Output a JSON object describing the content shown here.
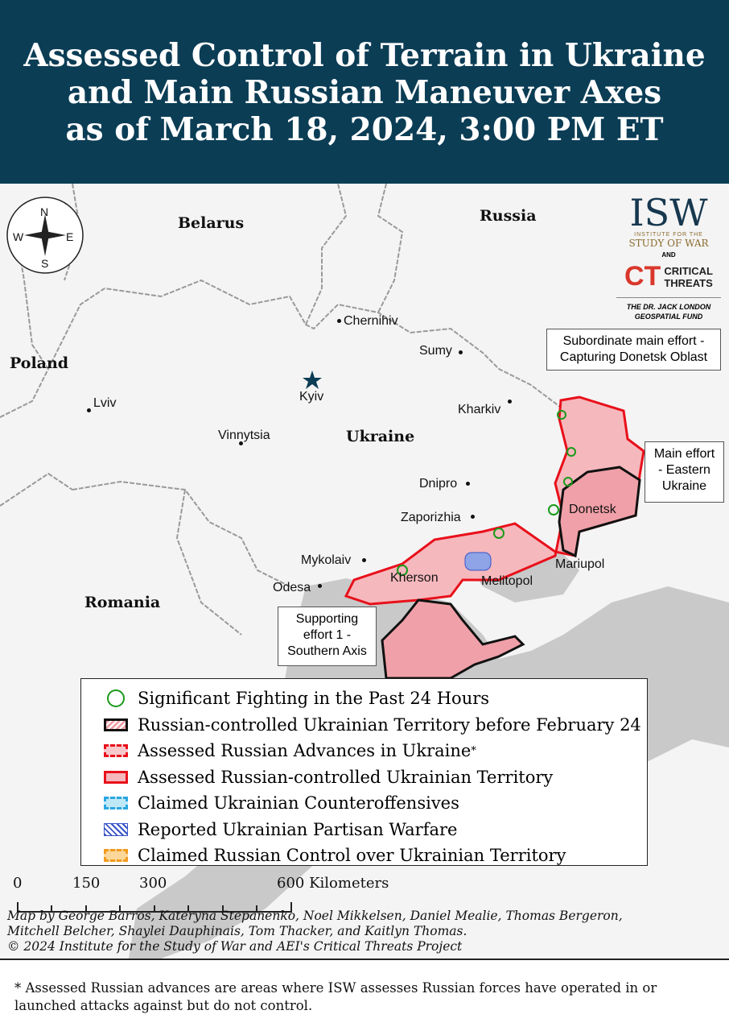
{
  "header": {
    "title_lines": [
      "Assessed Control of Terrain in Ukraine",
      "and Main Russian Maneuver Axes",
      "as of March 18, 2024, 3:00 PM ET"
    ]
  },
  "compass": {
    "n": "N",
    "s": "S",
    "e": "E",
    "w": "W"
  },
  "logo": {
    "isw": "ISW",
    "isw_sub1": "INSTITUTE FOR THE",
    "isw_sub2": "STUDY OF WAR",
    "and": "AND",
    "ct": "CT",
    "ct_line1": "CRITICAL",
    "ct_line2": "THREATS",
    "fund_line1": "THE DR. JACK LONDON",
    "fund_line2": "GEOSPATIAL FUND"
  },
  "countries": {
    "belarus": "Belarus",
    "russia": "Russia",
    "poland": "Poland",
    "ukraine": "Ukraine",
    "romania": "Romania"
  },
  "cities": {
    "chernihiv": "Chernihiv",
    "sumy": "Sumy",
    "kyiv": "Kyiv",
    "kharkiv": "Kharkiv",
    "lviv": "Lviv",
    "vinnytsia": "Vinnytsia",
    "dnipro": "Dnipro",
    "zaporizhia": "Zaporizhia",
    "donetsk": "Donetsk",
    "mykolaiv": "Mykolaiv",
    "mariupol": "Mariupol",
    "odesa": "Odesa",
    "kherson": "Kherson",
    "melitopol": "Melitopol"
  },
  "callouts": {
    "subordinate": "Subordinate main effort - Capturing Donetsk Oblast",
    "main": "Main effort - Eastern Ukraine",
    "supporting": "Supporting effort 1 - Southern Axis"
  },
  "legend": {
    "items": [
      {
        "label": "Significant Fighting in the Past 24 Hours"
      },
      {
        "label": "Russian-controlled Ukrainian Territory before February 24"
      },
      {
        "label": "Assessed Russian Advances in Ukraine",
        "sup": "*"
      },
      {
        "label": "Assessed Russian-controlled Ukrainian Territory"
      },
      {
        "label": "Claimed Ukrainian Counteroffensives"
      },
      {
        "label": "Reported Ukrainian Partisan Warfare"
      },
      {
        "label": "Claimed Russian Control over Ukrainian Territory"
      }
    ]
  },
  "scale": {
    "ticks": [
      "0",
      "150",
      "300",
      "600 Kilometers"
    ]
  },
  "credits": [
    "Map by George Barros, Kateryna Stepanenko, Noel Mikkelsen, Daniel Mealie, Thomas Bergeron,",
    "Mitchell Belcher, Shaylei Dauphinais, Tom Thacker, and Kaitlyn Thomas.",
    "© 2024 Institute for the Study of War and AEI's Critical Threats Project"
  ],
  "footnote": "* Assessed Russian advances are areas where ISW assesses Russian forces have operated in or launched attacks against but do not control.",
  "colors": {
    "header_bg": "#0b3d55",
    "occupied_fill": "#f5b8bd",
    "occupied_border": "#e8101a",
    "pre2022_border": "#111111",
    "sea": "#c9c9c9",
    "land": "#f4f4f4"
  }
}
